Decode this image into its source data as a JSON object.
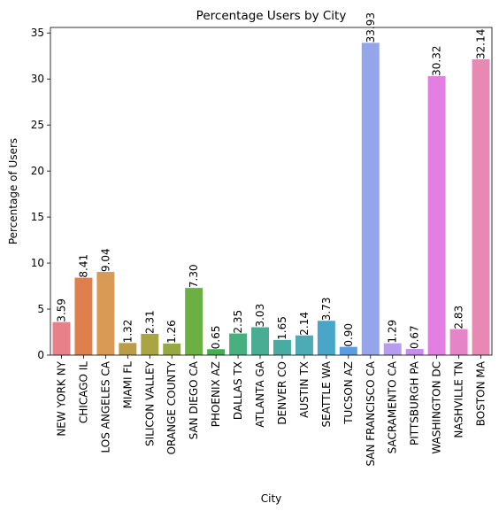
{
  "chart_data": {
    "type": "bar",
    "title": "Percentage Users by City",
    "xlabel": "City",
    "ylabel": "Percentage of Users",
    "ylim": [
      0,
      35.6
    ],
    "yticks": [
      0,
      5,
      10,
      15,
      20,
      25,
      30,
      35
    ],
    "grid": false,
    "categories": [
      "NEW YORK NY",
      "CHICAGO IL",
      "LOS ANGELES CA",
      "MIAMI FL",
      "SILICON VALLEY",
      "ORANGE COUNTY",
      "SAN DIEGO CA",
      "PHOENIX AZ",
      "DALLAS TX",
      "ATLANTA GA",
      "DENVER CO",
      "AUSTIN TX",
      "SEATTLE WA",
      "TUCSON AZ",
      "SAN FRANCISCO CA",
      "SACRAMENTO CA",
      "PITTSBURGH PA",
      "WASHINGTON DC",
      "NASHVILLE TN",
      "BOSTON MA"
    ],
    "values": [
      3.59,
      8.41,
      9.04,
      1.32,
      2.31,
      1.26,
      7.3,
      0.65,
      2.35,
      3.03,
      1.65,
      2.14,
      3.73,
      0.9,
      33.93,
      1.29,
      0.67,
      30.32,
      2.83,
      32.14
    ],
    "value_labels": [
      "3.59",
      "8.41",
      "9.04",
      "1.32",
      "2.31",
      "1.26",
      "7.30",
      "0.65",
      "2.35",
      "3.03",
      "1.65",
      "2.14",
      "3.73",
      "0.90",
      "33.93",
      "1.29",
      "0.67",
      "30.32",
      "2.83",
      "32.14"
    ],
    "colors": [
      "#e8808a",
      "#e07f4e",
      "#d89a55",
      "#bb9d48",
      "#a9a444",
      "#96a843",
      "#6bb043",
      "#44b04d",
      "#48b07f",
      "#49ad93",
      "#4aaba3",
      "#4cabb5",
      "#4aa6c9",
      "#5a9de0",
      "#94a5ea",
      "#b69cec",
      "#c98cec",
      "#e37fe3",
      "#e584c7",
      "#e889b4"
    ]
  }
}
